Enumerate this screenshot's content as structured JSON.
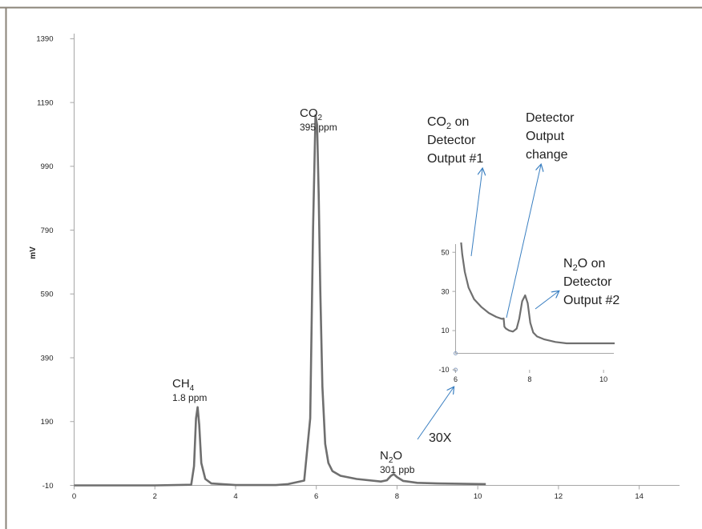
{
  "chart_data": [
    {
      "type": "line",
      "ylabel": "mV",
      "xlabel": "",
      "xlim": [
        0,
        15
      ],
      "ylim": [
        -10,
        1490
      ],
      "xticks": [
        0,
        2,
        4,
        6,
        8,
        10,
        12,
        14
      ],
      "yticks": [
        -10,
        190,
        390,
        590,
        790,
        990,
        1190,
        1390
      ],
      "x_tick_labels": [
        "0",
        "2",
        "4",
        "6",
        "8",
        "10",
        "12",
        "14"
      ],
      "y_tick_labels": [
        "-10",
        "190",
        "390",
        "590",
        "790",
        "990",
        "1190",
        "1390"
      ],
      "grid": false,
      "series": [
        {
          "color": "#6f6f6f",
          "x": [
            0,
            1,
            2,
            2.9,
            2.97,
            3.02,
            3.06,
            3.1,
            3.15,
            3.25,
            3.4,
            4,
            5,
            5.3,
            5.7,
            5.85,
            5.92,
            5.98,
            6.02,
            6.06,
            6.1,
            6.15,
            6.22,
            6.3,
            6.4,
            6.6,
            7,
            7.6,
            7.75,
            7.85,
            7.92,
            8.0,
            8.15,
            8.5,
            9,
            10.2
          ],
          "y": [
            -10,
            -10,
            -10,
            -8,
            50,
            200,
            235,
            180,
            60,
            10,
            -4,
            -9,
            -9,
            -6,
            5,
            200,
            800,
            1150,
            1120,
            900,
            600,
            300,
            120,
            60,
            35,
            20,
            10,
            2,
            6,
            20,
            25,
            16,
            4,
            -2,
            -4,
            -6
          ]
        }
      ],
      "annotations": {
        "ch4_name": "CH",
        "ch4_sub": "4",
        "ch4_conc": "1.8 ppm",
        "co2_name": "CO",
        "co2_sub": "2",
        "co2_conc": "395 ppm",
        "n2o_name_n": "N",
        "n2o_sub": "2",
        "n2o_name_o": "O",
        "n2o_conc": "301 ppb",
        "zoom": "30X"
      },
      "peaks": [
        {
          "x": 3.06,
          "y": 235
        },
        {
          "x": 6.0,
          "y": 1150
        },
        {
          "x": 7.92,
          "y": 25
        }
      ]
    },
    {
      "type": "line",
      "xlim": [
        6,
        10.3
      ],
      "ylim": [
        -10,
        55
      ],
      "xticks": [
        6,
        8,
        10
      ],
      "yticks": [
        -10,
        10,
        30,
        50
      ],
      "x_tick_labels": [
        "6",
        "8",
        "10"
      ],
      "y_tick_labels": [
        "-10",
        "10",
        "30",
        "50"
      ],
      "grid": false,
      "series": [
        {
          "color": "#6f6f6f",
          "x": [
            6.15,
            6.18,
            6.25,
            6.35,
            6.5,
            6.7,
            6.9,
            7.1,
            7.25,
            7.3,
            7.32,
            7.36,
            7.45,
            7.55,
            7.65,
            7.72,
            7.8,
            7.88,
            7.95,
            8.02,
            8.1,
            8.2,
            8.4,
            8.7,
            9.0,
            9.5,
            10.0,
            10.3
          ],
          "y": [
            55,
            49,
            40,
            32,
            26,
            22,
            19,
            17,
            16,
            16.2,
            12,
            11,
            10,
            9.5,
            11,
            16,
            25,
            28,
            24,
            14,
            9,
            7,
            5.5,
            4.2,
            3.5,
            3.5,
            3.5,
            3.5
          ]
        }
      ],
      "annotations": {
        "co2_line1_pre": "CO",
        "co2_line1_sub": "2",
        "co2_line1_post": " on",
        "co2_line2": "Detector",
        "co2_line3": "Output #1",
        "change_line1": "Detector",
        "change_line2": "Output",
        "change_line3": "change",
        "n2o_line1_n": "N",
        "n2o_line1_sub": "2",
        "n2o_line1_post": "O on",
        "n2o_line2": "Detector",
        "n2o_line3": "Output #2"
      }
    }
  ],
  "colors": {
    "series": "#6f6f6f",
    "axis": "#a6a6a6",
    "border": "#8a8378",
    "arrow": "#3a7fc1",
    "text": "#222222"
  }
}
